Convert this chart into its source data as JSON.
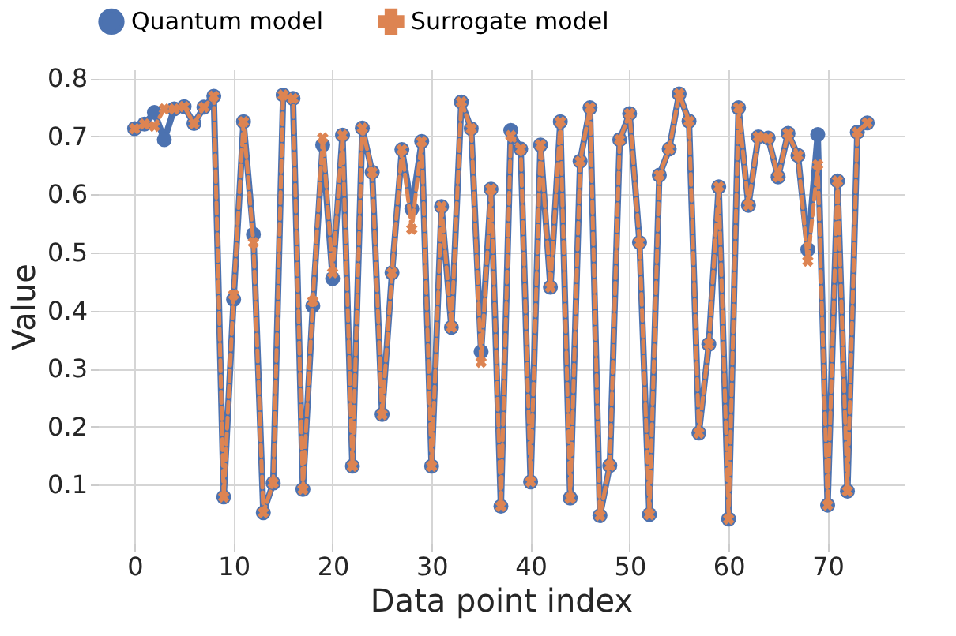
{
  "chart_data": {
    "type": "line",
    "xlabel": "Data point index",
    "ylabel": "Value",
    "x": [
      0,
      1,
      2,
      3,
      4,
      5,
      6,
      7,
      8,
      9,
      10,
      11,
      12,
      13,
      14,
      15,
      16,
      17,
      18,
      19,
      20,
      21,
      22,
      23,
      24,
      25,
      26,
      27,
      28,
      29,
      30,
      31,
      32,
      33,
      34,
      35,
      36,
      37,
      38,
      39,
      40,
      41,
      42,
      43,
      44,
      45,
      46,
      47,
      48,
      49,
      50,
      51,
      52,
      53,
      54,
      55,
      56,
      57,
      58,
      59,
      60,
      61,
      62,
      63,
      64,
      65,
      66,
      67,
      68,
      69,
      70,
      71,
      72,
      73,
      74
    ],
    "series": [
      {
        "name": "Quantum model",
        "color": "#4c72b0",
        "marker": "circle",
        "line_style": "solid",
        "values": [
          0.713,
          0.721,
          0.741,
          0.694,
          0.747,
          0.751,
          0.722,
          0.75,
          0.769,
          0.079,
          0.419,
          0.725,
          0.531,
          0.052,
          0.103,
          0.771,
          0.765,
          0.092,
          0.408,
          0.685,
          0.455,
          0.702,
          0.132,
          0.714,
          0.638,
          0.221,
          0.465,
          0.677,
          0.575,
          0.691,
          0.132,
          0.579,
          0.371,
          0.759,
          0.713,
          0.329,
          0.609,
          0.063,
          0.71,
          0.678,
          0.105,
          0.685,
          0.44,
          0.725,
          0.077,
          0.657,
          0.749,
          0.047,
          0.133,
          0.694,
          0.739,
          0.517,
          0.049,
          0.633,
          0.678,
          0.773,
          0.726,
          0.189,
          0.342,
          0.613,
          0.041,
          0.749,
          0.581,
          0.699,
          0.697,
          0.63,
          0.705,
          0.667,
          0.505,
          0.703,
          0.065,
          0.623,
          0.089,
          0.707,
          0.723
        ]
      },
      {
        "name": "Surrogate model",
        "color": "#dd8452",
        "marker": "cross",
        "line_style": "dashed",
        "values": [
          0.713,
          0.721,
          0.717,
          0.747,
          0.747,
          0.751,
          0.722,
          0.75,
          0.769,
          0.079,
          0.427,
          0.725,
          0.517,
          0.052,
          0.103,
          0.771,
          0.765,
          0.092,
          0.416,
          0.697,
          0.465,
          0.702,
          0.132,
          0.714,
          0.638,
          0.221,
          0.465,
          0.677,
          0.54,
          0.691,
          0.132,
          0.579,
          0.371,
          0.759,
          0.713,
          0.311,
          0.609,
          0.063,
          0.701,
          0.678,
          0.105,
          0.685,
          0.44,
          0.725,
          0.077,
          0.657,
          0.749,
          0.047,
          0.133,
          0.694,
          0.739,
          0.517,
          0.049,
          0.633,
          0.678,
          0.773,
          0.726,
          0.189,
          0.342,
          0.613,
          0.041,
          0.749,
          0.581,
          0.699,
          0.697,
          0.63,
          0.705,
          0.667,
          0.485,
          0.651,
          0.065,
          0.623,
          0.089,
          0.707,
          0.723
        ]
      }
    ],
    "xlim": [
      -3.7,
      77.7
    ],
    "xticks": [
      0,
      10,
      20,
      30,
      40,
      50,
      60,
      70
    ],
    "ylim": [
      0.0,
      0.815
    ],
    "yticks": [
      0.1,
      0.2,
      0.3,
      0.4,
      0.5,
      0.6,
      0.7,
      0.8
    ],
    "grid": true,
    "legend": "top"
  }
}
